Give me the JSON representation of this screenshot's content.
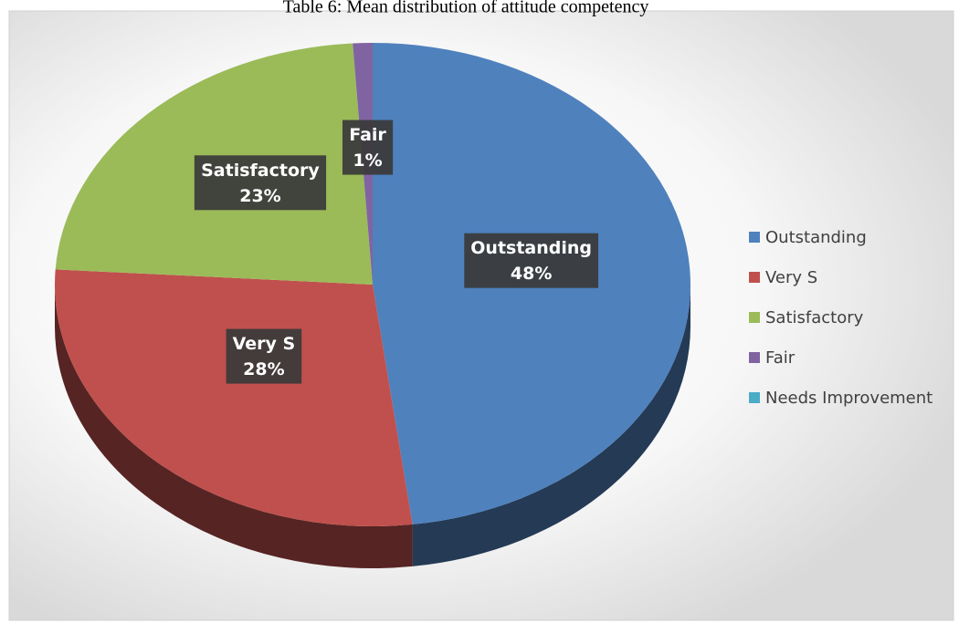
{
  "chart_data": {
    "type": "pie",
    "title": "Table 6: Mean distribution of attitude competency",
    "categories": [
      "Outstanding",
      "Very S",
      "Satisfactory",
      "Fair",
      "Needs Improvement"
    ],
    "values": [
      48,
      28,
      23,
      1,
      0
    ],
    "value_labels": [
      "48%",
      "28%",
      "23%",
      "1%",
      null
    ],
    "colors": [
      "#4f81bd",
      "#c0504d",
      "#9bbb59",
      "#8064a2",
      "#4bacc6"
    ],
    "legend": "right"
  }
}
